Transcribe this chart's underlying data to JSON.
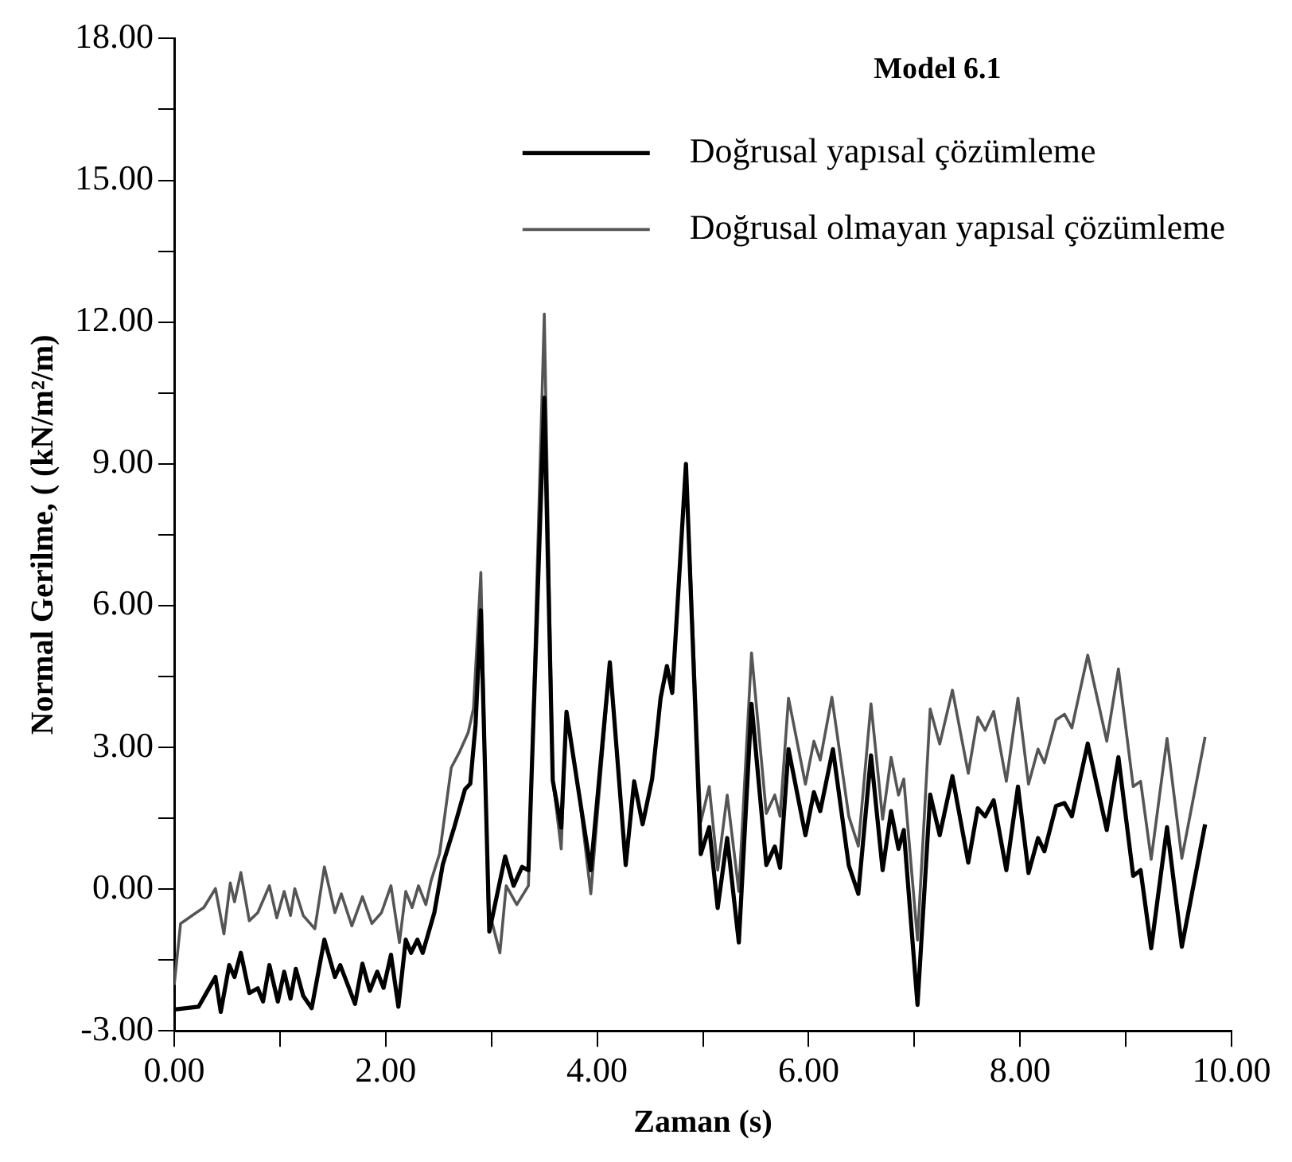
{
  "chart_data": {
    "type": "line",
    "xlabel": "Zaman (s)",
    "ylabel": "Normal Gerilme, ( (kN/m²/m)",
    "legend_title": "Model 6.1",
    "legend": "top right",
    "grid": false,
    "marker": "none",
    "line_style": "solid",
    "xlim": [
      0,
      10
    ],
    "xticks": [
      {
        "value": 0,
        "label": "0.00"
      },
      {
        "value": 1,
        "label": null
      },
      {
        "value": 2,
        "label": "2.00"
      },
      {
        "value": 3,
        "label": null
      },
      {
        "value": 4,
        "label": "4.00"
      },
      {
        "value": 5,
        "label": null
      },
      {
        "value": 6,
        "label": "6.00"
      },
      {
        "value": 7,
        "label": null
      },
      {
        "value": 8,
        "label": "8.00"
      },
      {
        "value": 9,
        "label": null
      },
      {
        "value": 10,
        "label": "10.00"
      }
    ],
    "ylim": [
      -3,
      18
    ],
    "yticks": [
      {
        "value": -3,
        "label": "-3.00"
      },
      {
        "value": -1.5,
        "label": null
      },
      {
        "value": 0,
        "label": "0.00"
      },
      {
        "value": 1.5,
        "label": null
      },
      {
        "value": 3,
        "label": "3.00"
      },
      {
        "value": 4.5,
        "label": null
      },
      {
        "value": 6,
        "label": "6.00"
      },
      {
        "value": 7.5,
        "label": null
      },
      {
        "value": 9,
        "label": "9.00"
      },
      {
        "value": 10.5,
        "label": null
      },
      {
        "value": 12,
        "label": "12.00"
      },
      {
        "value": 13.5,
        "label": null
      },
      {
        "value": 15,
        "label": "15.00"
      },
      {
        "value": 16.5,
        "label": null
      },
      {
        "value": 18,
        "label": "18.00"
      }
    ],
    "series": [
      {
        "name": "Doğrusal yapısal çözümleme",
        "color": "#000000",
        "x": [
          0,
          0.23,
          0.39,
          0.44,
          0.52,
          0.57,
          0.63,
          0.71,
          0.79,
          0.84,
          0.9,
          0.98,
          1.04,
          1.1,
          1.15,
          1.22,
          1.3,
          1.42,
          1.52,
          1.57,
          1.71,
          1.78,
          1.85,
          1.92,
          1.98,
          2.05,
          2.12,
          2.19,
          2.24,
          2.3,
          2.35,
          2.46,
          2.54,
          2.65,
          2.75,
          2.8,
          2.85,
          2.9,
          2.98,
          3.13,
          3.21,
          3.29,
          3.35,
          3.5,
          3.58,
          3.66,
          3.71,
          3.83,
          3.94,
          4.12,
          4.27,
          4.35,
          4.43,
          4.52,
          4.6,
          4.66,
          4.71,
          4.84,
          4.98,
          5.06,
          5.14,
          5.23,
          5.34,
          5.46,
          5.6,
          5.68,
          5.73,
          5.81,
          5.97,
          6.05,
          6.11,
          6.23,
          6.38,
          6.47,
          6.59,
          6.7,
          6.78,
          6.85,
          6.9,
          7.03,
          7.15,
          7.24,
          7.36,
          7.51,
          7.6,
          7.67,
          7.75,
          7.87,
          7.98,
          8.08,
          8.17,
          8.23,
          8.34,
          8.42,
          8.49,
          8.64,
          8.82,
          8.93,
          9.07,
          9.14,
          9.24,
          9.39,
          9.53,
          9.75
        ],
        "values": [
          -2.55,
          -2.49,
          -1.86,
          -2.6,
          -1.61,
          -1.86,
          -1.35,
          -2.2,
          -2.1,
          -2.38,
          -1.61,
          -2.38,
          -1.75,
          -2.32,
          -1.69,
          -2.26,
          -2.52,
          -1.07,
          -1.86,
          -1.61,
          -2.43,
          -1.58,
          -2.15,
          -1.75,
          -2.09,
          -1.39,
          -2.49,
          -1.07,
          -1.35,
          -1.07,
          -1.35,
          -0.5,
          0.52,
          1.32,
          2.11,
          2.23,
          3.48,
          5.9,
          -0.9,
          0.69,
          0.07,
          0.47,
          0.4,
          10.4,
          2.3,
          1.3,
          3.75,
          1.99,
          0.4,
          4.8,
          0.51,
          2.28,
          1.37,
          2.33,
          4.04,
          4.72,
          4.15,
          9,
          0.74,
          1.31,
          -0.4,
          1.08,
          -1.13,
          3.92,
          0.51,
          0.9,
          0.45,
          2.96,
          1.14,
          2.05,
          1.65,
          2.96,
          0.5,
          -0.1,
          2.83,
          0.4,
          1.65,
          0.85,
          1.25,
          -2.45,
          2,
          1.14,
          2.39,
          0.56,
          1.71,
          1.54,
          1.88,
          0.4,
          2.17,
          0.34,
          1.08,
          0.8,
          1.76,
          1.82,
          1.54,
          3.08,
          1.25,
          2.79,
          0.28,
          0.4,
          -1.25,
          1.31,
          -1.22,
          1.37
        ]
      },
      {
        "name": "Doğrusal olmayan yapısal çözümleme",
        "color": "#555555",
        "x": [
          0,
          0.06,
          0.17,
          0.28,
          0.39,
          0.47,
          0.53,
          0.57,
          0.63,
          0.71,
          0.79,
          0.9,
          0.97,
          1.04,
          1.1,
          1.14,
          1.22,
          1.33,
          1.42,
          1.52,
          1.58,
          1.68,
          1.78,
          1.87,
          1.96,
          2.05,
          2.13,
          2.19,
          2.25,
          2.31,
          2.38,
          2.43,
          2.51,
          2.62,
          2.7,
          2.78,
          2.83,
          2.9,
          2.97,
          3.08,
          3.14,
          3.24,
          3.35,
          3.5,
          3.58,
          3.66,
          3.71,
          3.83,
          3.94,
          4.12,
          4.27,
          4.35,
          4.43,
          4.52,
          4.6,
          4.66,
          4.71,
          4.84,
          4.98,
          5.06,
          5.14,
          5.23,
          5.34,
          5.46,
          5.6,
          5.68,
          5.73,
          5.81,
          5.97,
          6.05,
          6.11,
          6.22,
          6.38,
          6.47,
          6.59,
          6.7,
          6.78,
          6.85,
          6.9,
          7.03,
          7.15,
          7.24,
          7.36,
          7.51,
          7.6,
          7.67,
          7.75,
          7.87,
          7.98,
          8.08,
          8.17,
          8.23,
          8.34,
          8.42,
          8.49,
          8.64,
          8.82,
          8.93,
          9.07,
          9.14,
          9.24,
          9.39,
          9.53,
          9.75
        ],
        "values": [
          -2.03,
          -0.73,
          -0.56,
          -0.39,
          0.01,
          -0.95,
          0.13,
          -0.27,
          0.35,
          -0.67,
          -0.5,
          0.07,
          -0.61,
          -0.05,
          -0.56,
          0.01,
          -0.56,
          -0.84,
          0.47,
          -0.5,
          -0.1,
          -0.78,
          -0.16,
          -0.73,
          -0.5,
          0.07,
          -1.13,
          -0.05,
          -0.39,
          0.07,
          -0.33,
          0.18,
          0.75,
          2.57,
          2.91,
          3.31,
          3.82,
          6.7,
          -0.39,
          -1.35,
          0.07,
          -0.33,
          0.07,
          12.17,
          2.33,
          0.85,
          3.75,
          1.99,
          -0.1,
          4.75,
          0.51,
          2.28,
          1.37,
          2.33,
          4.04,
          4.72,
          4.15,
          9,
          1.42,
          2.17,
          0.4,
          1.99,
          -0.05,
          5,
          1.6,
          1.99,
          1.54,
          4.04,
          2.22,
          3.13,
          2.73,
          4.06,
          1.54,
          0.91,
          3.92,
          1.48,
          2.79,
          1.99,
          2.33,
          -1.08,
          3.81,
          3.07,
          4.21,
          2.45,
          3.64,
          3.36,
          3.76,
          2.28,
          4.04,
          2.22,
          2.96,
          2.67,
          3.58,
          3.7,
          3.41,
          4.95,
          3.13,
          4.66,
          2.17,
          2.28,
          0.63,
          3.19,
          0.65,
          3.22
        ]
      }
    ]
  }
}
